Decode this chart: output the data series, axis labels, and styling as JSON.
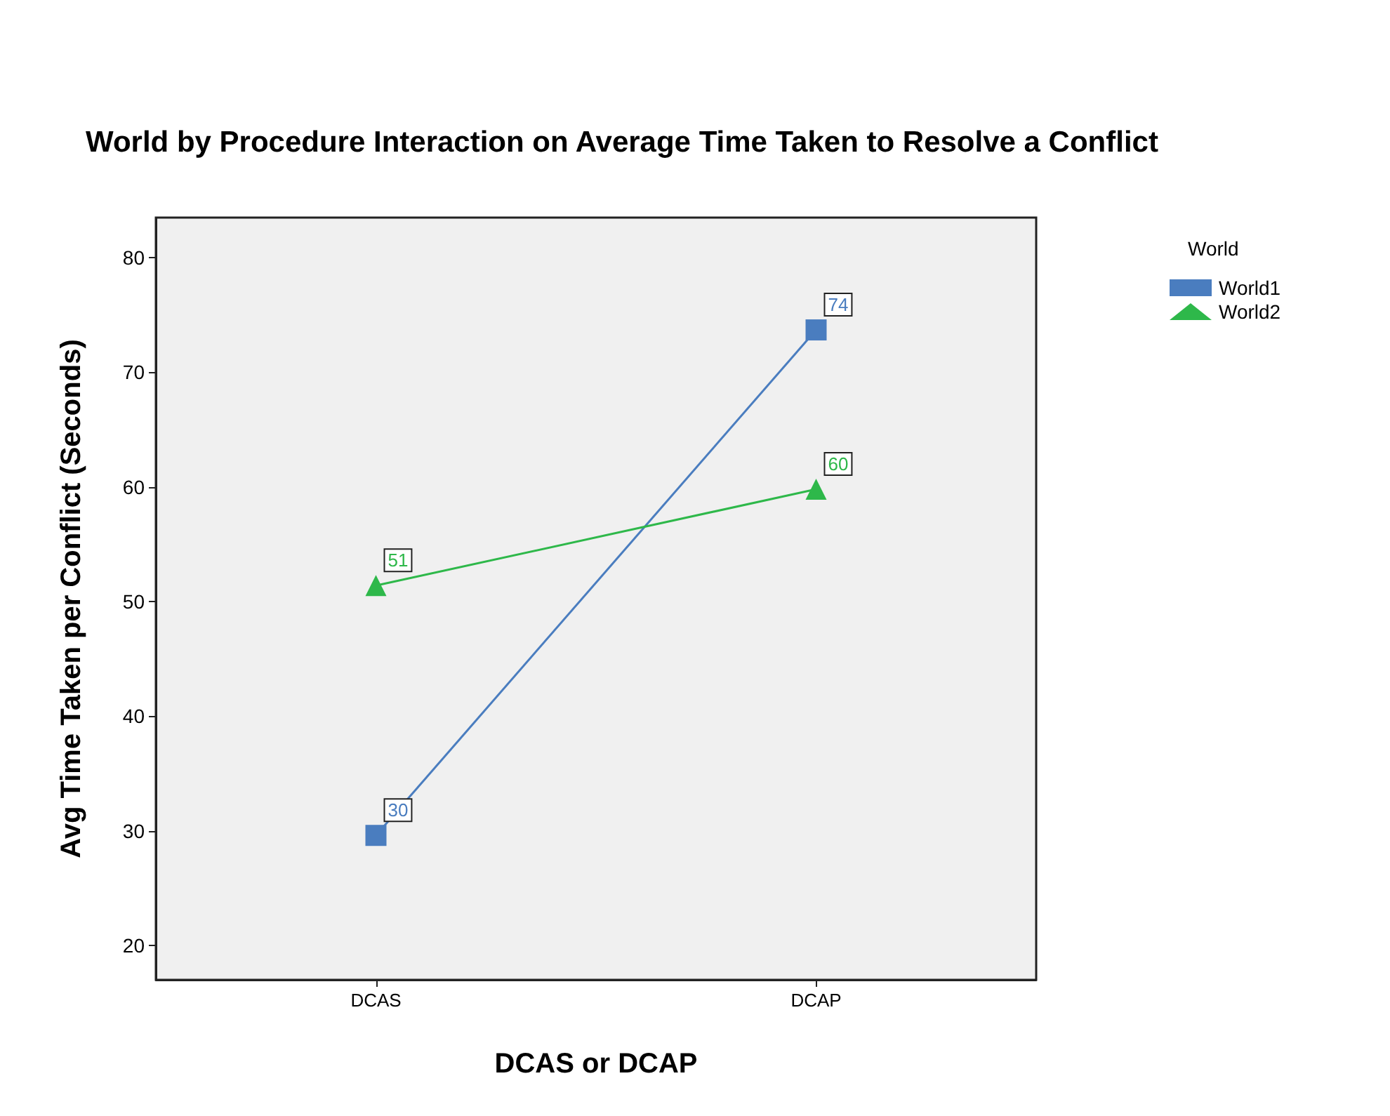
{
  "chart_data": {
    "type": "line",
    "title": "World by Procedure Interaction on Average Time Taken to Resolve a Conflict",
    "xlabel": "DCAS or DCAP",
    "ylabel": "Avg Time Taken per Conflict (Seconds)",
    "legend_title": "World",
    "categories": [
      "DCAS",
      "DCAP"
    ],
    "series": [
      {
        "name": "World1",
        "color": "#4a7dbf",
        "marker": "square",
        "values": [
          29.6,
          73.7
        ],
        "value_labels": [
          "30",
          "74"
        ]
      },
      {
        "name": "World2",
        "color": "#2eb84a",
        "marker": "triangle",
        "values": [
          51.4,
          59.8
        ],
        "value_labels": [
          "51",
          "60"
        ]
      }
    ],
    "ylim": [
      17,
      83.5
    ],
    "yticks": [
      20,
      30,
      40,
      50,
      60,
      70,
      80
    ],
    "grid": false,
    "legend": "top right",
    "line_style": "solid"
  }
}
